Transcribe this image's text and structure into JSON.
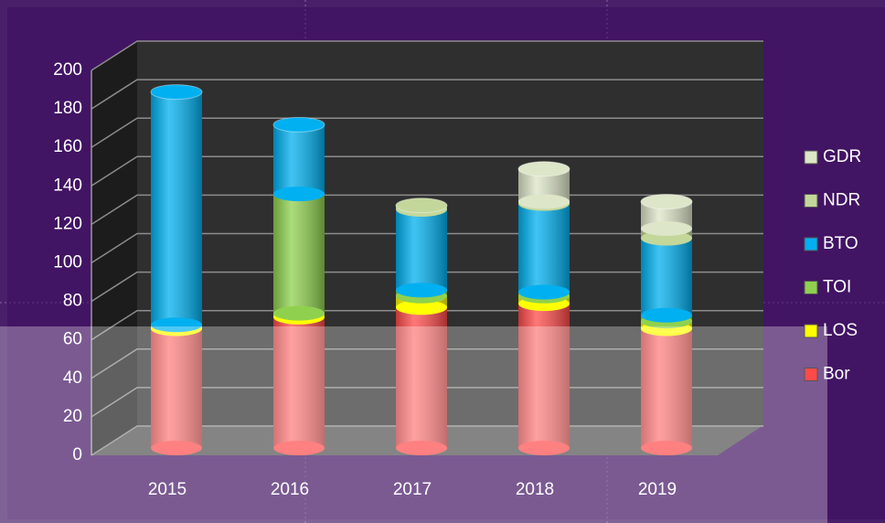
{
  "chart_data": {
    "type": "bar3d_stacked",
    "categories": [
      "2015",
      "2016",
      "2017",
      "2018",
      "2019"
    ],
    "series": [
      {
        "name": "Bor",
        "color": "#ff4a4a",
        "values": [
          62,
          68,
          73,
          75,
          62
        ]
      },
      {
        "name": "LOS",
        "color": "#ffff00",
        "values": [
          2,
          2,
          6,
          4,
          4
        ]
      },
      {
        "name": "TOI",
        "color": "#8fd14f",
        "values": [
          0,
          62,
          3,
          2,
          3
        ]
      },
      {
        "name": "BTO",
        "color": "#00b0f0",
        "values": [
          121,
          36,
          42,
          46,
          40
        ]
      },
      {
        "name": "NDR",
        "color": "#c4d79b",
        "values": [
          0,
          0,
          2,
          1,
          5
        ]
      },
      {
        "name": "GDR",
        "color": "#dde6c8",
        "values": [
          0,
          0,
          0,
          17,
          14
        ]
      }
    ],
    "ylim": [
      0,
      200
    ],
    "yticks": [
      0,
      20,
      40,
      60,
      80,
      100,
      120,
      140,
      160,
      180,
      200
    ],
    "grid": true,
    "legend": "right"
  }
}
